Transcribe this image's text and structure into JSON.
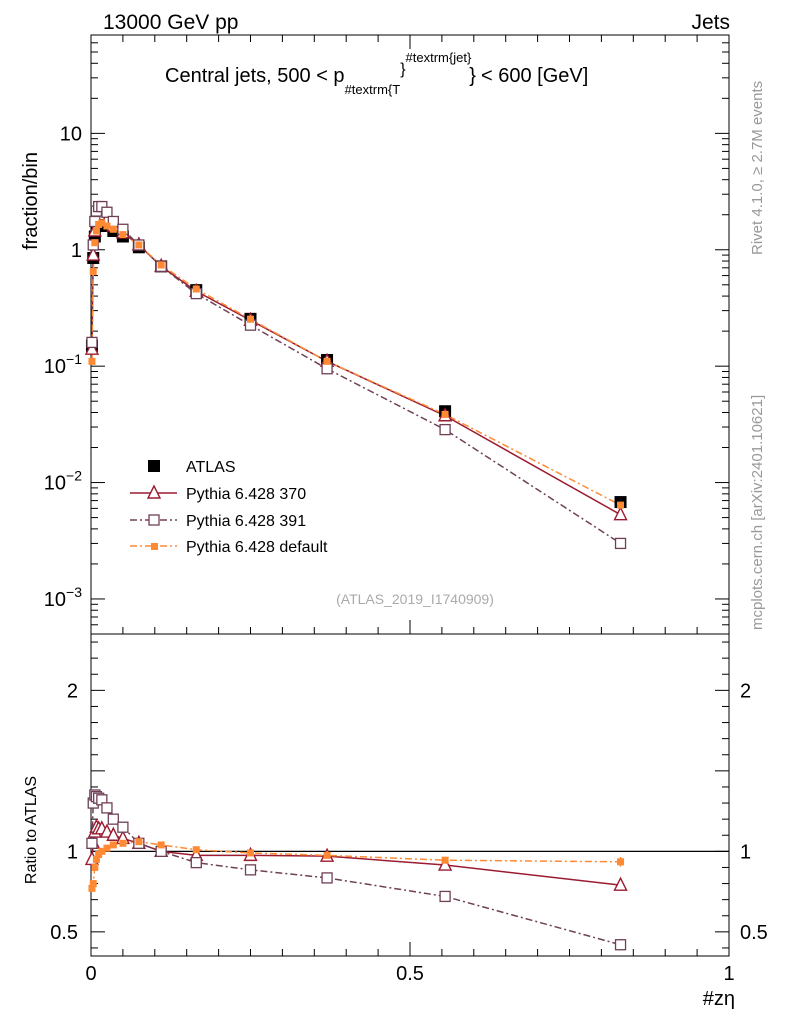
{
  "header": {
    "energy_label": "13000 GeV pp",
    "category_label": "Jets"
  },
  "side": {
    "rivet_label": "Rivet 4.1.0, ≥ 2.7M events",
    "source_label": "mcplots.cern.ch [arXiv:2401.10621]"
  },
  "colors": {
    "atlas": "#000000",
    "p370": "#9b1b30",
    "p391": "#6e4057",
    "pdefault": "#ff8a33"
  },
  "chart_data": {
    "type": "line",
    "title": "Central jets, 500 < p_{#textrm{T}}^{#textrm{jet}} < 600 [GeV]",
    "title_parts": {
      "prefix": "Central jets, 500 < p",
      "sub": "#textrm{T",
      "sub_brace": "}",
      "sup": "#textrm{jet}",
      "suffix": "< 600 [GeV]"
    },
    "analysis_label": "(ATLAS_2019_I1740909)",
    "xlabel": "#zη",
    "ylabel": "fraction/bin",
    "ratio_ylabel": "Ratio to ATLAS",
    "xlim": [
      0,
      1
    ],
    "ylim": [
      0.0005,
      70
    ],
    "ratio_ylim": [
      0.35,
      2.35
    ],
    "yscale": "log",
    "x_ticks": [
      {
        "value": 0,
        "label": "0"
      },
      {
        "value": 0.5,
        "label": "0.5"
      },
      {
        "value": 1,
        "label": "1"
      }
    ],
    "y_ticks": [
      {
        "value": 10,
        "base": "10",
        "exp": ""
      },
      {
        "value": 1,
        "base": "1",
        "exp": ""
      },
      {
        "value": 0.1,
        "base": "10",
        "exp": "−1"
      },
      {
        "value": 0.01,
        "base": "10",
        "exp": "−2"
      },
      {
        "value": 0.001,
        "base": "10",
        "exp": "−3"
      }
    ],
    "ratio_ticks": [
      {
        "value": 2,
        "label": "2"
      },
      {
        "value": 1,
        "label": "1"
      },
      {
        "value": 0.5,
        "label": "0.5"
      }
    ],
    "x": [
      0.0015,
      0.0035,
      0.006,
      0.0085,
      0.012,
      0.017,
      0.025,
      0.035,
      0.05,
      0.075,
      0.11,
      0.165,
      0.25,
      0.37,
      0.555,
      0.83
    ],
    "series": [
      {
        "name": "ATLAS",
        "style": "data",
        "values": [
          0.15,
          0.85,
          1.3,
          1.6,
          1.75,
          1.75,
          1.6,
          1.45,
          1.3,
          1.05,
          0.72,
          0.45,
          0.255,
          0.113,
          0.041,
          0.0068
        ]
      },
      {
        "name": "Pythia 6.428 370",
        "style": "triangle",
        "values": [
          0.14,
          0.9,
          1.45,
          1.85,
          2.0,
          2.0,
          1.8,
          1.6,
          1.4,
          1.1,
          0.72,
          0.44,
          0.248,
          0.11,
          0.0375,
          0.0053
        ]
      },
      {
        "name": "Pythia 6.428 391",
        "style": "open-square",
        "values": [
          0.16,
          1.1,
          1.75,
          2.15,
          2.35,
          2.35,
          2.1,
          1.75,
          1.5,
          1.1,
          0.72,
          0.42,
          0.225,
          0.095,
          0.0285,
          0.003
        ]
      },
      {
        "name": "Pythia 6.428 default",
        "style": "filled-small-square",
        "values": [
          0.11,
          0.65,
          1.15,
          1.45,
          1.65,
          1.7,
          1.6,
          1.5,
          1.35,
          1.1,
          0.74,
          0.46,
          0.253,
          0.11,
          0.0385,
          0.0064
        ]
      }
    ],
    "ratio_series": [
      {
        "name": "Pythia 6.428 370",
        "style": "triangle",
        "values": [
          0.95,
          1.05,
          1.12,
          1.15,
          1.14,
          1.14,
          1.12,
          1.1,
          1.08,
          1.05,
          1.0,
          0.975,
          0.975,
          0.97,
          0.915,
          0.79
        ],
        "errors": [
          0,
          0,
          0,
          0,
          0,
          0,
          0,
          0,
          0,
          0,
          0,
          0,
          0,
          0,
          0,
          0.025
        ]
      },
      {
        "name": "Pythia 6.428 391",
        "style": "open-square",
        "values": [
          1.05,
          1.3,
          1.35,
          1.34,
          1.33,
          1.32,
          1.27,
          1.2,
          1.15,
          1.05,
          1.0,
          0.93,
          0.885,
          0.835,
          0.72,
          0.42
        ],
        "errors": [
          0,
          0,
          0,
          0,
          0,
          0,
          0,
          0,
          0,
          0,
          0,
          0,
          0,
          0,
          0,
          0.035
        ]
      },
      {
        "name": "Pythia 6.428 default",
        "style": "filled-small-square",
        "values": [
          0.77,
          0.8,
          0.9,
          0.95,
          0.98,
          1.0,
          1.02,
          1.04,
          1.05,
          1.06,
          1.04,
          1.01,
          0.99,
          0.975,
          0.945,
          0.935
        ],
        "errors": [
          0,
          0,
          0,
          0,
          0,
          0,
          0,
          0,
          0,
          0,
          0,
          0,
          0,
          0,
          0,
          0.03
        ]
      }
    ]
  }
}
